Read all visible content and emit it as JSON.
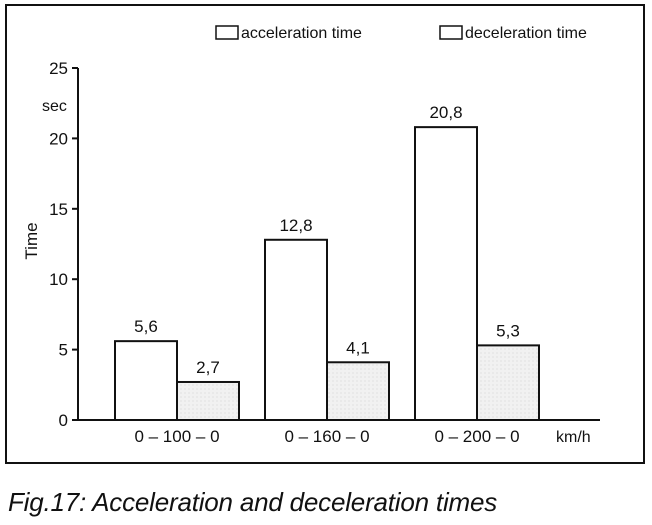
{
  "caption": "Fig.17: Acceleration and deceleration times",
  "chart_data": {
    "type": "bar",
    "title": "",
    "ylabel": "Time",
    "yunit": "sec",
    "xunit": "km/h",
    "categories": [
      "0 – 100 – 0",
      "0 – 160 – 0",
      "0 – 200 – 0"
    ],
    "series": [
      {
        "name": "acceleration time",
        "values": [
          5.6,
          12.8,
          20.8
        ],
        "labels": [
          "5,6",
          "12,8",
          "20,8"
        ],
        "fill": "#ffffff"
      },
      {
        "name": "deceleration time",
        "values": [
          2.7,
          4.1,
          5.3
        ],
        "labels": [
          "2,7",
          "4,1",
          "5,3"
        ],
        "fill": "#f1f1f1"
      }
    ],
    "ylim": [
      0,
      25
    ],
    "yticks": [
      0,
      5,
      10,
      15,
      20,
      25
    ],
    "grid": false,
    "legend": "top-right"
  }
}
